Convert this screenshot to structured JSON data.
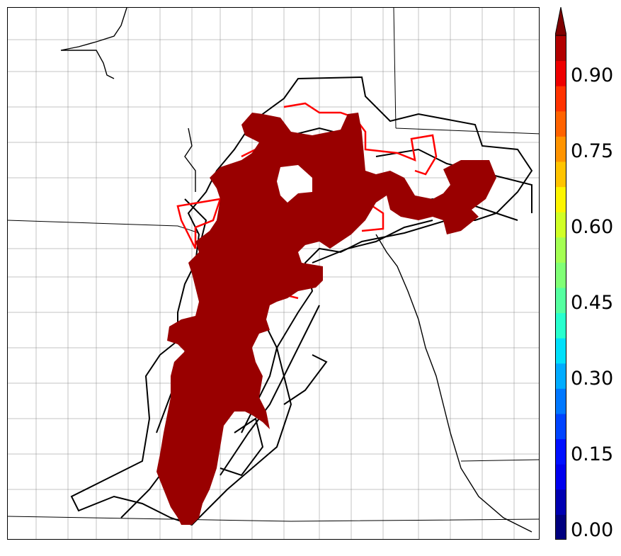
{
  "map": {
    "background": "#ffffff",
    "fill_color": "#990000",
    "ensemble_contour_color": "#000000",
    "observed_contour_color": "#ff0000"
  },
  "colorbar": {
    "extend": "max",
    "ticks": [
      "0.00",
      "0.15",
      "0.30",
      "0.45",
      "0.60",
      "0.75",
      "0.90"
    ],
    "levels": [
      0.0,
      0.05,
      0.1,
      0.15,
      0.2,
      0.25,
      0.3,
      0.35,
      0.4,
      0.45,
      0.5,
      0.55,
      0.6,
      0.65,
      0.7,
      0.75,
      0.8,
      0.85,
      0.9,
      0.95,
      1.0
    ],
    "colors": [
      "#00007f",
      "#0000b2",
      "#0000ee",
      "#0010ff",
      "#0044ff",
      "#0078ff",
      "#00acff",
      "#00e0fa",
      "#28ffce",
      "#55ffa0",
      "#80ff76",
      "#a4ff53",
      "#d0ff26",
      "#fdf500",
      "#ffc400",
      "#ff9400",
      "#ff6300",
      "#ff3300",
      "#ee0000",
      "#b20000"
    ],
    "extend_color": "#7f0000"
  }
}
